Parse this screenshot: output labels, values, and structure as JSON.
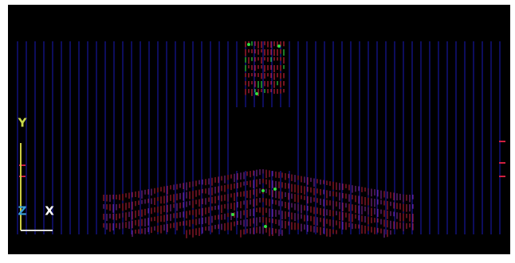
{
  "axis_triad": {
    "labels": [
      "Y",
      "Z",
      "X"
    ]
  }
}
